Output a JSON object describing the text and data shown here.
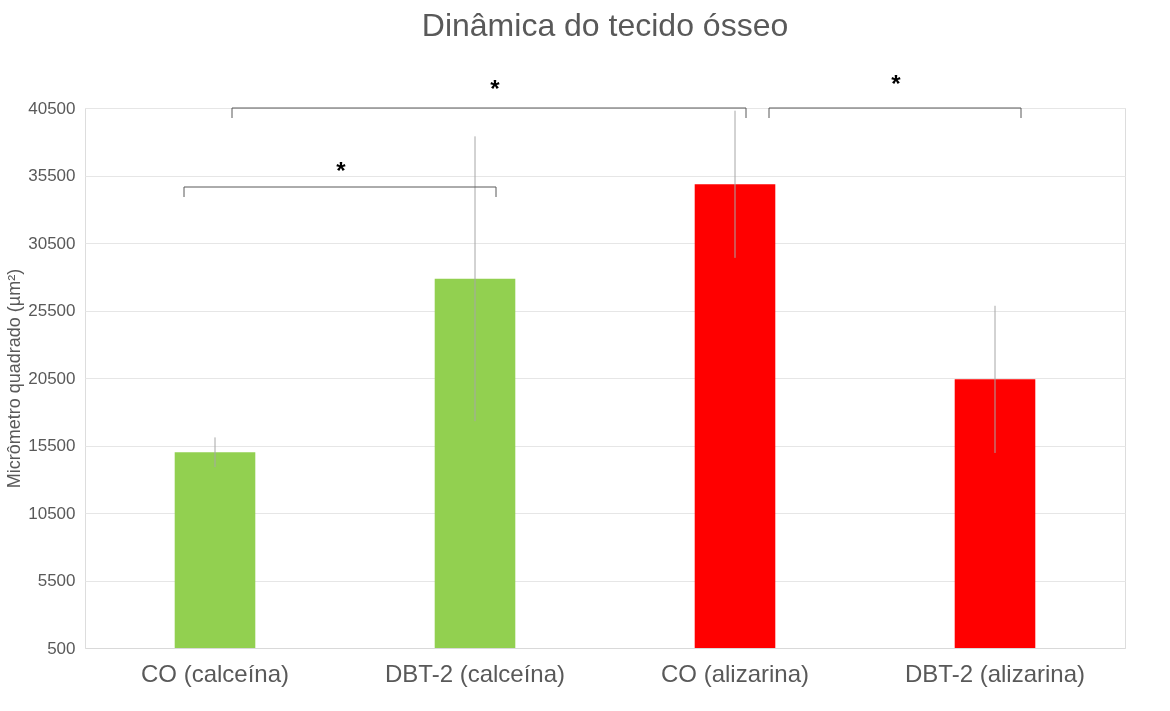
{
  "chart_data": {
    "type": "bar",
    "title": "Dinâmica do tecido ósseo",
    "ylabel": "Micrômetro quadrado (µm²)",
    "categories": [
      "CO (calceína)",
      "DBT-2 (calceína)",
      "CO (alizarina)",
      "DBT-2 (alizarina)"
    ],
    "values": [
      15000,
      27850,
      34850,
      20400
    ],
    "colors": [
      "#92d050",
      "#92d050",
      "#ff0000",
      "#ff0000"
    ],
    "errors": [
      1100,
      10550,
      5450,
      5450
    ],
    "ylim": [
      500,
      40500
    ],
    "yticks": [
      500,
      5500,
      10500,
      15500,
      20500,
      25500,
      30500,
      35500,
      40500
    ],
    "grid": "y",
    "legend": false,
    "annotations": [
      "*",
      "*",
      "*"
    ]
  }
}
